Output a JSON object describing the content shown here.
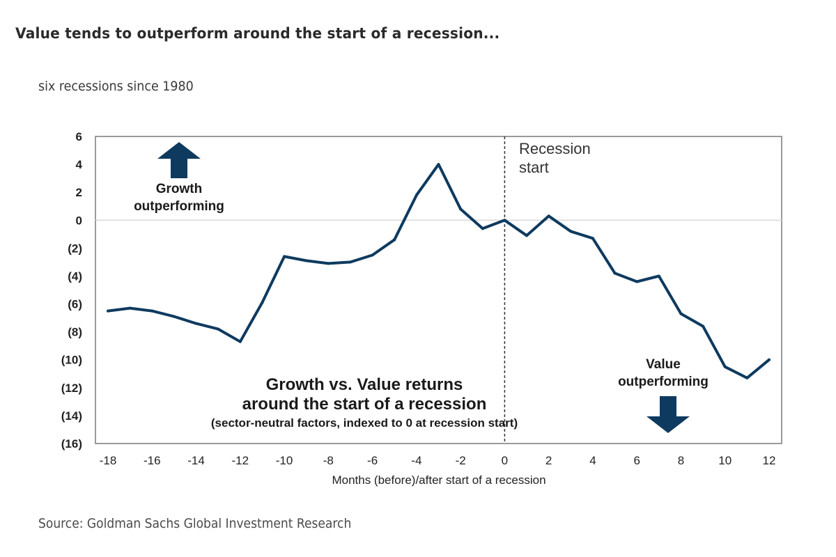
{
  "title": "Value tends to outperform around the start of a recession...",
  "subtitle": "six recessions since 1980",
  "source": "Source: Goldman Sachs Global Investment Research",
  "colors": {
    "line": "#0e3a5f",
    "arrow": "#0e3a5f",
    "frame": "#9a9a9a",
    "zero_line": "#d8d8d8",
    "recession_line": "#333333"
  },
  "chart_data": {
    "type": "line",
    "title": "Growth vs. Value returns around the start of a recession",
    "subtitle": "(sector-neutral factors, indexed to 0 at recession start)",
    "xlabel": "Months (before)/after start of a recession",
    "ylabel": "",
    "xlim": [
      -18,
      12
    ],
    "ylim": [
      -16,
      6
    ],
    "x_ticks": [
      -18,
      -16,
      -14,
      -12,
      -10,
      -8,
      -6,
      -4,
      -2,
      0,
      2,
      4,
      6,
      8,
      10,
      12
    ],
    "x_tick_labels": [
      "-18",
      "-16",
      "-14",
      "-12",
      "-10",
      "-8",
      "-6",
      "-4",
      "-2",
      "0",
      "2",
      "4",
      "6",
      "8",
      "10",
      "12"
    ],
    "y_ticks": [
      6,
      4,
      2,
      0,
      -2,
      -4,
      -6,
      -8,
      -10,
      -12,
      -14,
      -16
    ],
    "y_tick_labels": [
      "6",
      "4",
      "2",
      "0",
      "(2)",
      "(4)",
      "(6)",
      "(8)",
      "(10)",
      "(12)",
      "(14)",
      "(16)"
    ],
    "grid": false,
    "zero_line": true,
    "legend": "none",
    "series": [
      {
        "name": "Growth vs. Value",
        "x": [
          -18,
          -17,
          -16,
          -15,
          -14,
          -13,
          -12,
          -11,
          -10,
          -9,
          -8,
          -7,
          -6,
          -5,
          -4,
          -3,
          -2,
          -1,
          0,
          1,
          2,
          3,
          4,
          5,
          6,
          7,
          8,
          9,
          10,
          11,
          12
        ],
        "values": [
          -6.5,
          -6.3,
          -6.5,
          -6.9,
          -7.4,
          -7.8,
          -8.7,
          -5.9,
          -2.6,
          -2.9,
          -3.1,
          -3.0,
          -2.5,
          -1.4,
          1.8,
          4.0,
          0.8,
          -0.6,
          0.0,
          -1.1,
          0.3,
          -0.8,
          -1.3,
          -3.8,
          -4.4,
          -4.0,
          -6.7,
          -7.6,
          -10.5,
          -11.3,
          -10.0
        ]
      }
    ],
    "vertical_marker": {
      "x": 0,
      "label_line1": "Recession",
      "label_line2": "start"
    },
    "annotations": {
      "growth_line1": "Growth",
      "growth_line2": "outperforming",
      "value_line1": "Value",
      "value_line2": "outperforming",
      "center_line1": "Growth vs. Value returns",
      "center_line2": "around the start of a recession",
      "center_line3": "(sector-neutral  factors,  indexed to 0 at recession  start)"
    }
  }
}
